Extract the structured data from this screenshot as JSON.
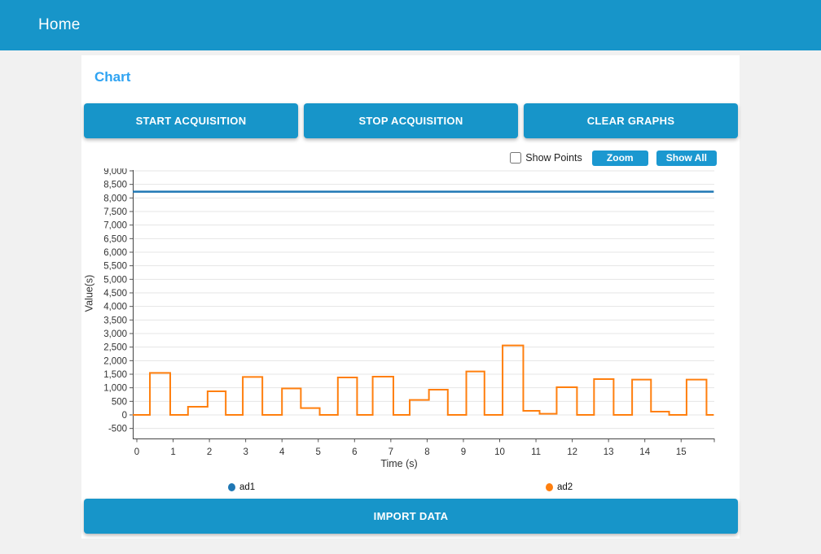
{
  "header": {
    "title": "Home"
  },
  "page": {
    "title": "Chart"
  },
  "toolbar": {
    "start_label": "START ACQUISITION",
    "stop_label": "STOP ACQUISITION",
    "clear_label": "CLEAR GRAPHS"
  },
  "controls": {
    "show_points_label": "Show Points",
    "show_points_checked": false,
    "zoom_label": "Zoom",
    "show_all_label": "Show All"
  },
  "import_button": {
    "label": "IMPORT DATA"
  },
  "colors": {
    "primary_blue": "#1795c9",
    "heading_blue": "#2ea3f2",
    "ad1_blue": "#1f77b4",
    "ad2_orange": "#ff7f0e",
    "grid_gray": "#e4e4e4",
    "axis_gray": "#444444"
  },
  "chart_data": {
    "type": "line",
    "title": "",
    "xlabel": "Time (s)",
    "ylabel": "Value(s)",
    "xlim": [
      0,
      15.9
    ],
    "ylim": [
      -870,
      9100
    ],
    "x_ticks": [
      0,
      1,
      2,
      3,
      4,
      5,
      6,
      7,
      8,
      9,
      10,
      11,
      12,
      13,
      14,
      15
    ],
    "y_ticks": [
      -500,
      0,
      500,
      1000,
      1500,
      2000,
      2500,
      3000,
      3500,
      4000,
      4500,
      5000,
      5500,
      6000,
      6500,
      7000,
      7500,
      8000,
      8500,
      9000
    ],
    "grid": true,
    "legend_position": "bottom",
    "series": [
      {
        "name": "ad1",
        "color": "#1f77b4",
        "width": 2.5,
        "style": "step",
        "x_start": -0.11,
        "x_end": 15.9,
        "points": [
          [
            0,
            8230
          ]
        ]
      },
      {
        "name": "ad2",
        "color": "#ff7f0e",
        "width": 2,
        "style": "step",
        "x_start": -0.11,
        "x_end": 15.9,
        "points": [
          [
            0.0,
            0
          ],
          [
            0.36,
            1550
          ],
          [
            0.92,
            0
          ],
          [
            1.41,
            300
          ],
          [
            1.95,
            870
          ],
          [
            2.45,
            0
          ],
          [
            2.92,
            1400
          ],
          [
            3.46,
            0
          ],
          [
            4.0,
            975
          ],
          [
            4.52,
            250
          ],
          [
            5.04,
            0
          ],
          [
            5.54,
            1380
          ],
          [
            6.07,
            0
          ],
          [
            6.5,
            1410
          ],
          [
            7.07,
            0
          ],
          [
            7.52,
            550
          ],
          [
            8.05,
            930
          ],
          [
            8.57,
            0
          ],
          [
            9.08,
            1600
          ],
          [
            9.58,
            0
          ],
          [
            10.08,
            2560
          ],
          [
            10.65,
            150
          ],
          [
            11.1,
            40
          ],
          [
            11.57,
            1020
          ],
          [
            12.13,
            0
          ],
          [
            12.6,
            1320
          ],
          [
            13.14,
            0
          ],
          [
            13.65,
            1300
          ],
          [
            14.17,
            120
          ],
          [
            14.67,
            0
          ],
          [
            15.15,
            1300
          ],
          [
            15.7,
            0
          ]
        ]
      }
    ]
  }
}
